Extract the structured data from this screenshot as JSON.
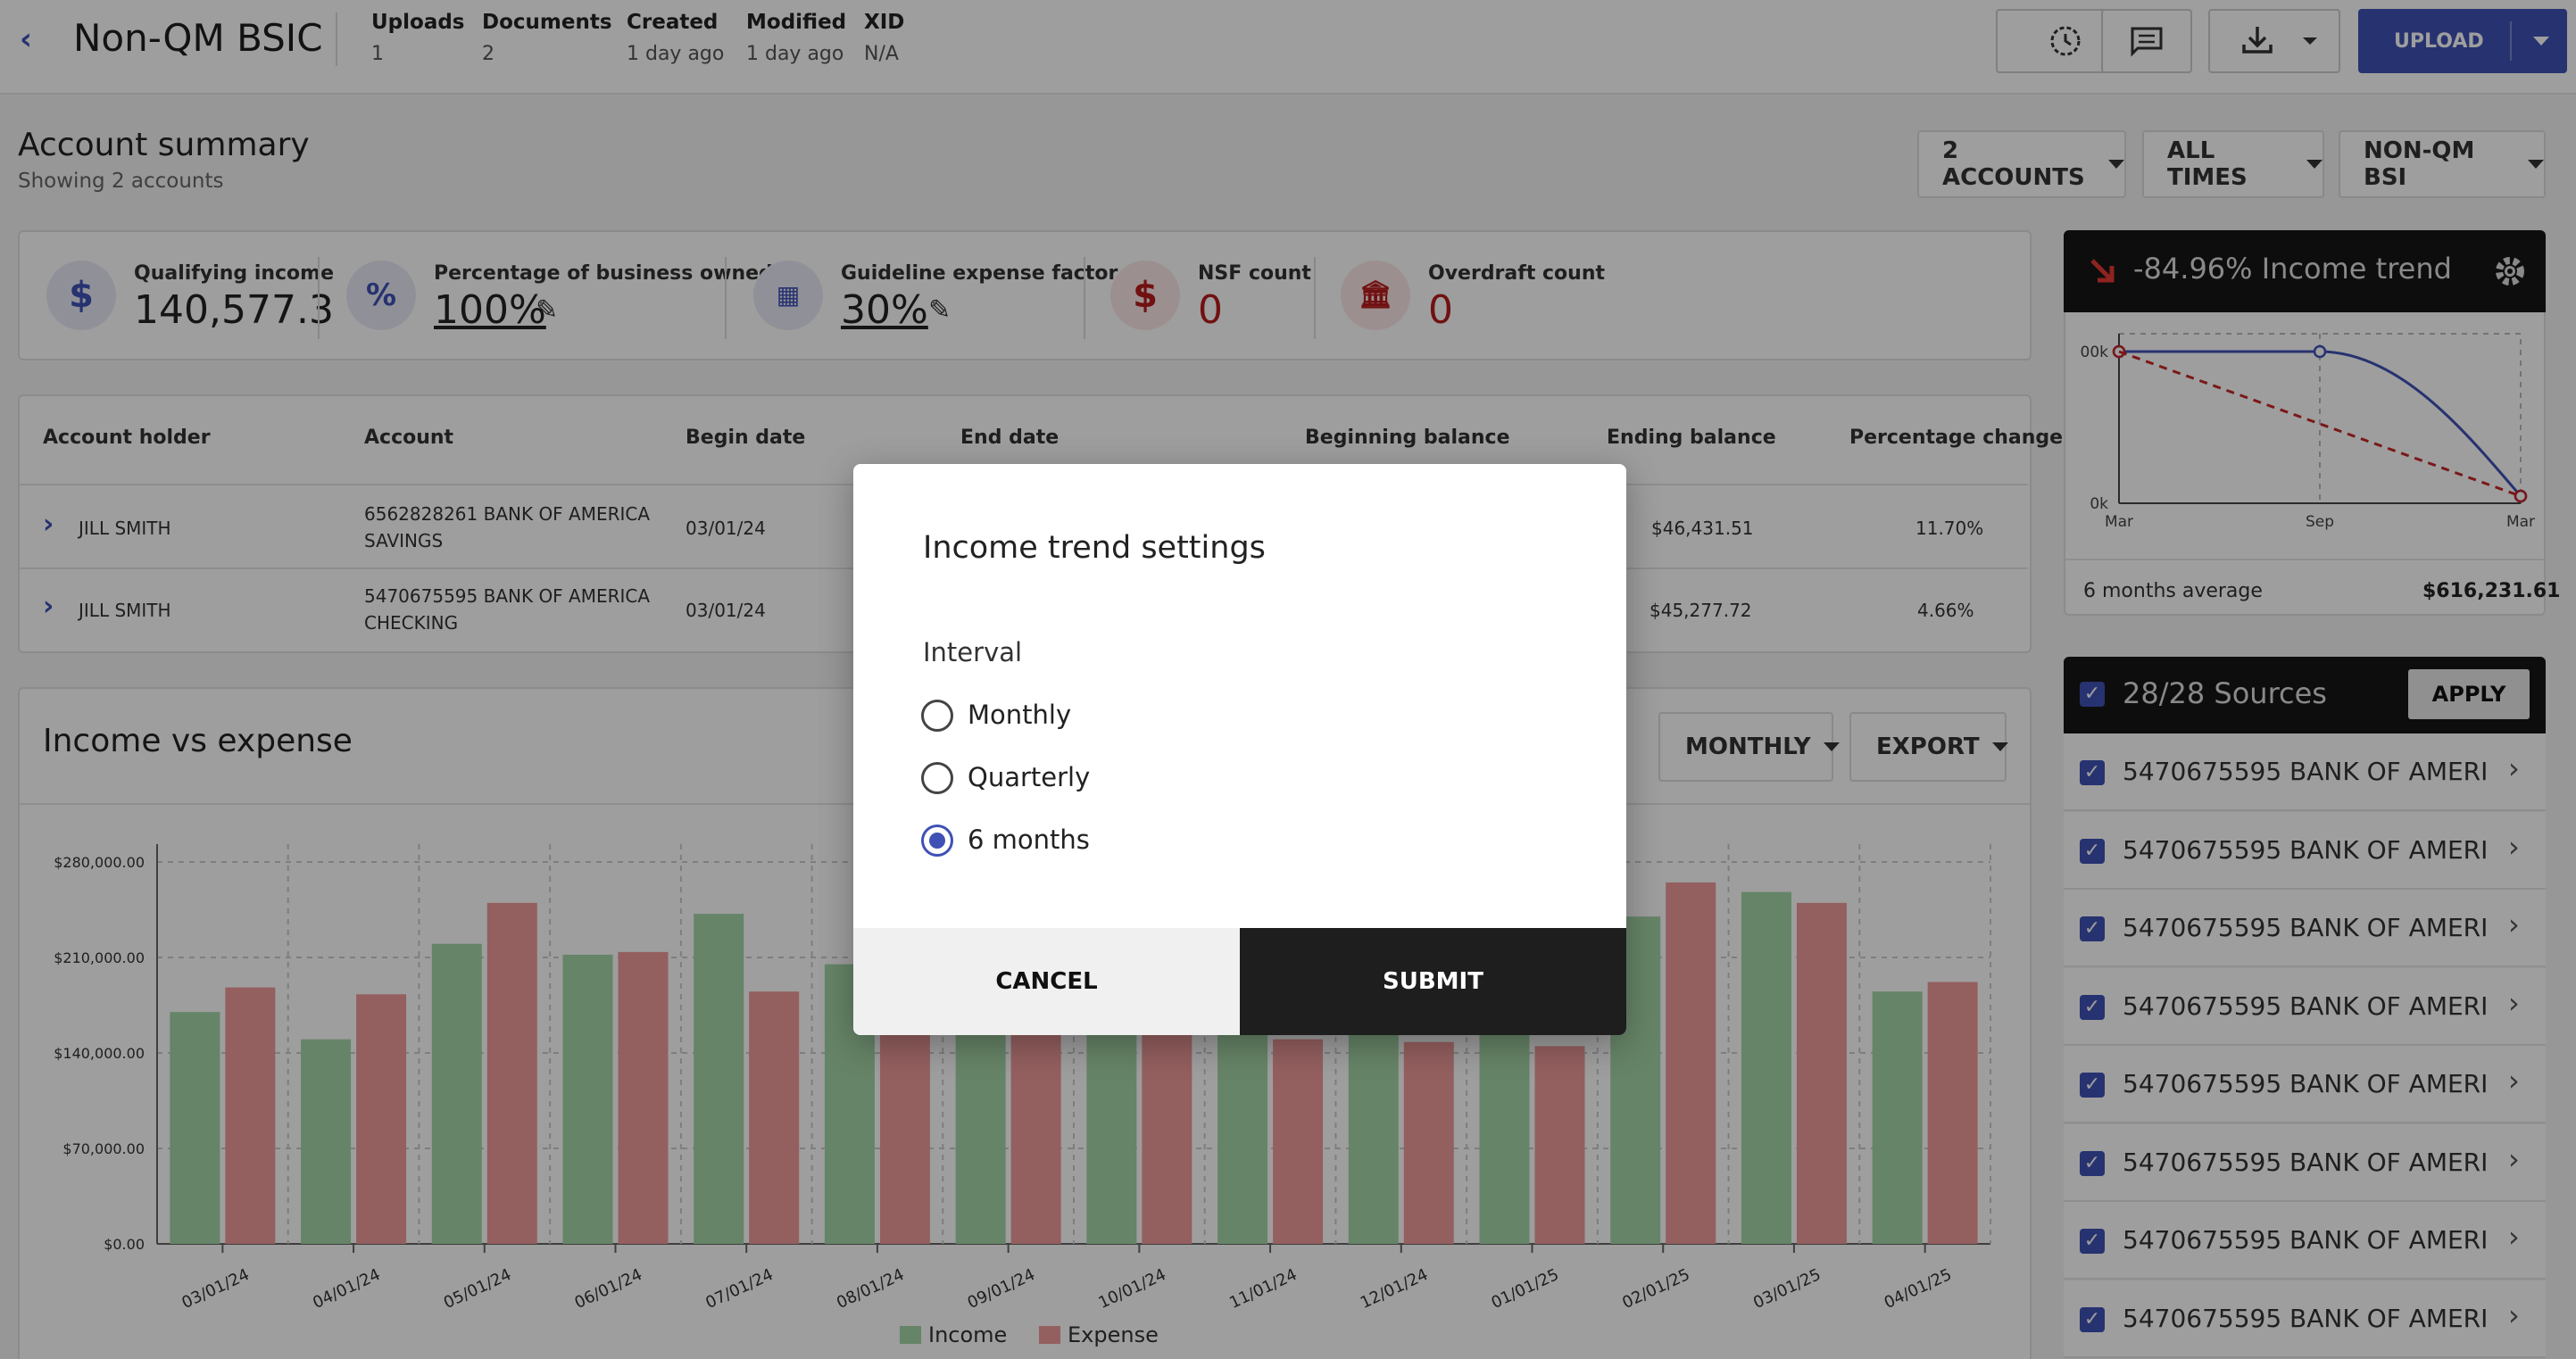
{
  "header": {
    "title": "Non-QM BSIC",
    "meta": [
      {
        "key": "Uploads",
        "value": "1"
      },
      {
        "key": "Documents",
        "value": "2"
      },
      {
        "key": "Created",
        "value": "1 day ago"
      },
      {
        "key": "Modified",
        "value": "1 day ago"
      },
      {
        "key": "XID",
        "value": "N/A"
      }
    ],
    "upload_label": "UPLOAD"
  },
  "summary": {
    "title": "Account summary",
    "subtitle": "Showing 2 accounts",
    "filters": [
      "2 ACCOUNTS",
      "ALL TIMES",
      "NON-QM BSI"
    ]
  },
  "stats": [
    {
      "label": "Qualifying income",
      "value": "140,577.3",
      "icon": "dollar-icon"
    },
    {
      "label": "Percentage of business owned",
      "value": "100%",
      "icon": "percent-icon"
    },
    {
      "label": "Guideline expense factor",
      "value": "30%",
      "icon": "calculator-icon"
    },
    {
      "label": "NSF count",
      "value": "0",
      "icon": "no-money-icon"
    },
    {
      "label": "Overdraft count",
      "value": "0",
      "icon": "bank-icon"
    }
  ],
  "table": {
    "headers": [
      "Account holder",
      "Account",
      "Begin date",
      "End date",
      "Beginning balance",
      "Ending balance",
      "Percentage change"
    ],
    "rows": [
      {
        "holder": "JILL SMITH",
        "account_line1": "6562828261 BANK OF AMERICA",
        "account_line2": "SAVINGS",
        "begin": "03/01/24",
        "ending": "$46,431.51",
        "change": "11.70%"
      },
      {
        "holder": "JILL SMITH",
        "account_line1": "5470675595 BANK OF AMERICA",
        "account_line2": "CHECKING",
        "begin": "03/01/24",
        "ending": "$45,277.72",
        "change": "4.66%"
      }
    ]
  },
  "income_vs_expense": {
    "title": "Income vs expense",
    "interval_button": "MONTHLY",
    "export_button": "EXPORT"
  },
  "chart_data": [
    {
      "type": "bar",
      "categories": [
        "03/01/24",
        "04/01/24",
        "05/01/24",
        "06/01/24",
        "07/01/24",
        "08/01/24",
        "09/01/24",
        "10/01/24",
        "11/01/24",
        "12/01/24",
        "01/01/25",
        "02/01/25",
        "03/01/25",
        "04/01/25"
      ],
      "series": [
        {
          "name": "Income",
          "values": [
            170000,
            150000,
            220000,
            212000,
            242000,
            205000,
            195000,
            190000,
            185000,
            180000,
            175000,
            240000,
            258000,
            185000
          ]
        },
        {
          "name": "Expense",
          "values": [
            188000,
            183000,
            250000,
            214000,
            185000,
            165000,
            160000,
            155000,
            150000,
            148000,
            145000,
            265000,
            250000,
            192000
          ]
        }
      ],
      "ytick_labels": [
        "$0.00",
        "$70,000.00",
        "$140,000.00",
        "$210,000.00",
        "$280,000.00"
      ],
      "ylim": [
        0,
        280000
      ],
      "legend": "bottom",
      "colors": {
        "Income": "#a5d6a7",
        "Expense": "#ef9a9a"
      }
    },
    {
      "type": "line",
      "title": "-84.96% Income trend",
      "x_tick_labels": [
        "Mar",
        "Sep",
        "Mar"
      ],
      "ytick_labels": [
        "0k",
        "00k"
      ],
      "series": [
        {
          "values": [
            616,
            616,
            93
          ]
        },
        {
          "values": [
            616,
            93
          ]
        }
      ],
      "footer_label": "6 months average",
      "footer_value": "$616,231.61"
    }
  ],
  "sources": {
    "title": "28/28 Sources",
    "apply_label": "APPLY",
    "items": [
      "5470675595 BANK OF AMERIC...",
      "5470675595 BANK OF AMERIC...",
      "5470675595 BANK OF AMERIC...",
      "5470675595 BANK OF AMERIC...",
      "5470675595 BANK OF AMERIC...",
      "5470675595 BANK OF AMERIC...",
      "5470675595 BANK OF AMERIC...",
      "5470675595 BANK OF AMERIC..."
    ]
  },
  "modal": {
    "title": "Income trend settings",
    "interval_label": "Interval",
    "options": [
      "Monthly",
      "Quarterly",
      "6 months"
    ],
    "selected": "6 months",
    "cancel_label": "CANCEL",
    "submit_label": "SUBMIT"
  }
}
